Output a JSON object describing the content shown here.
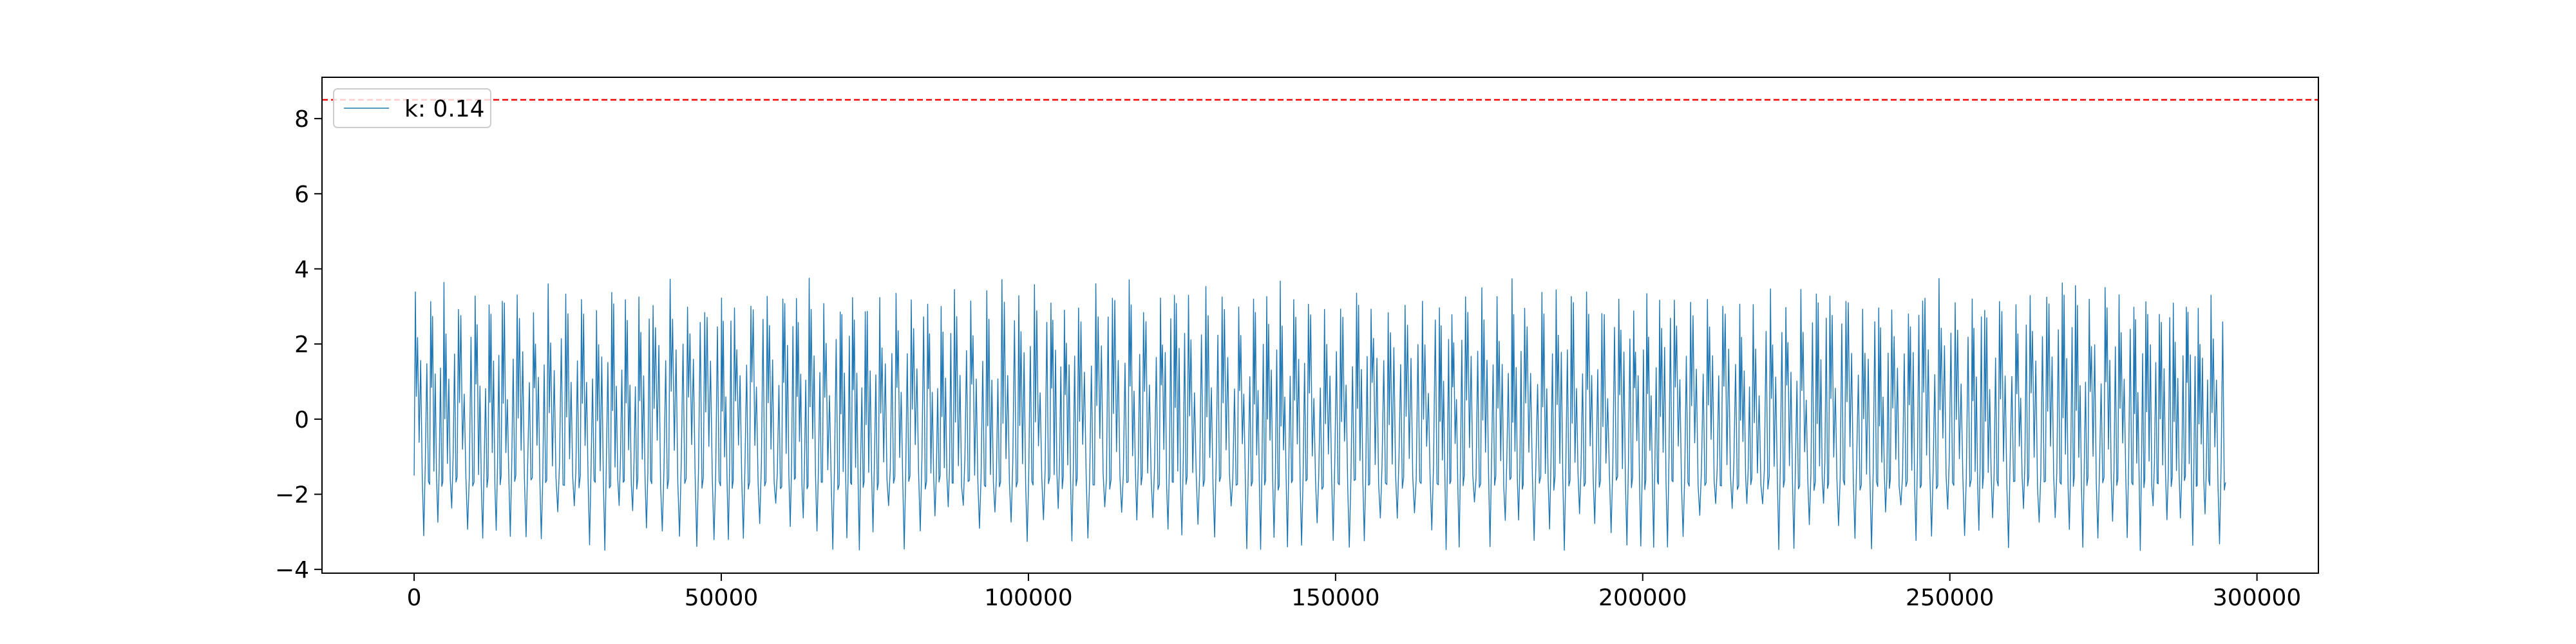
{
  "chart_data": {
    "type": "line",
    "title": "",
    "xlabel": "",
    "ylabel": "",
    "xlim": [
      -15000,
      310000
    ],
    "ylim": [
      -4.1,
      9.1
    ],
    "x_ticks": [
      0,
      50000,
      100000,
      150000,
      200000,
      250000,
      300000
    ],
    "x_tick_labels": [
      "0",
      "50000",
      "100000",
      "150000",
      "200000",
      "250000",
      "300000"
    ],
    "y_ticks": [
      -4,
      -2,
      0,
      2,
      4,
      6,
      8
    ],
    "y_tick_labels": [
      "−4",
      "−2",
      "0",
      "2",
      "4",
      "6",
      "8"
    ],
    "grid": false,
    "legend": {
      "placement": "top-left",
      "entries": [
        "k: 0.14"
      ]
    },
    "threshold": {
      "y": 8.5,
      "color": "#ff0000",
      "style": "dashed"
    },
    "series": [
      {
        "name": "k: 0.14",
        "color": "#1f77b4",
        "x_range": [
          0,
          295000
        ],
        "cycle_period": 2400,
        "peak_max_range": [
          3.1,
          3.8
        ],
        "trough_min_range": [
          -3.5,
          -2.2
        ],
        "mean": 0.0
      }
    ],
    "colors": {
      "axis": "#000000",
      "series": "#1f77b4",
      "threshold": "#ff0000"
    }
  }
}
